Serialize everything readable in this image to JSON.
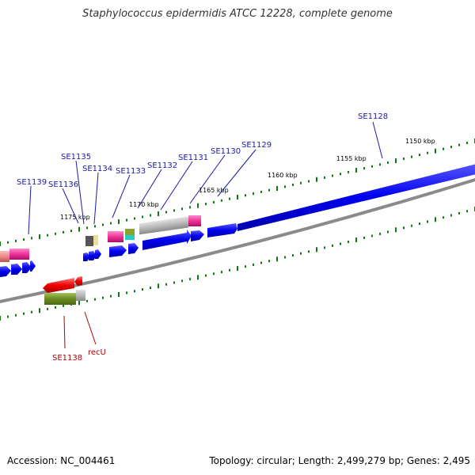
{
  "title": "Staphylococcus epidermidis ATCC 12228, complete genome",
  "footer": {
    "accession": "Accession: NC_004461",
    "topology": "Topology: circular; Length: 2,499,279 bp; Genes: 2,495"
  },
  "ticks": [
    "1150 kbp",
    "1155 kbp",
    "1160 kbp",
    "1165 kbp",
    "1170 kbp",
    "1175 kbp"
  ],
  "labels_top": [
    "SE1128",
    "SE1129",
    "SE1130",
    "SE1131",
    "SE1132",
    "SE1133",
    "SE1134",
    "SE1135",
    "SE1136",
    "SE1139"
  ],
  "labels_bottom": [
    "SE1138",
    "recU"
  ],
  "colors": {
    "blue": "#0000ee",
    "pink": "#ee3399",
    "red": "#ee0000",
    "olive": "#6a8c1e",
    "gray": "#aaaaaa",
    "tick": "#117711",
    "label_top": "#1a1aa8",
    "label_bottom": "#b00000"
  }
}
